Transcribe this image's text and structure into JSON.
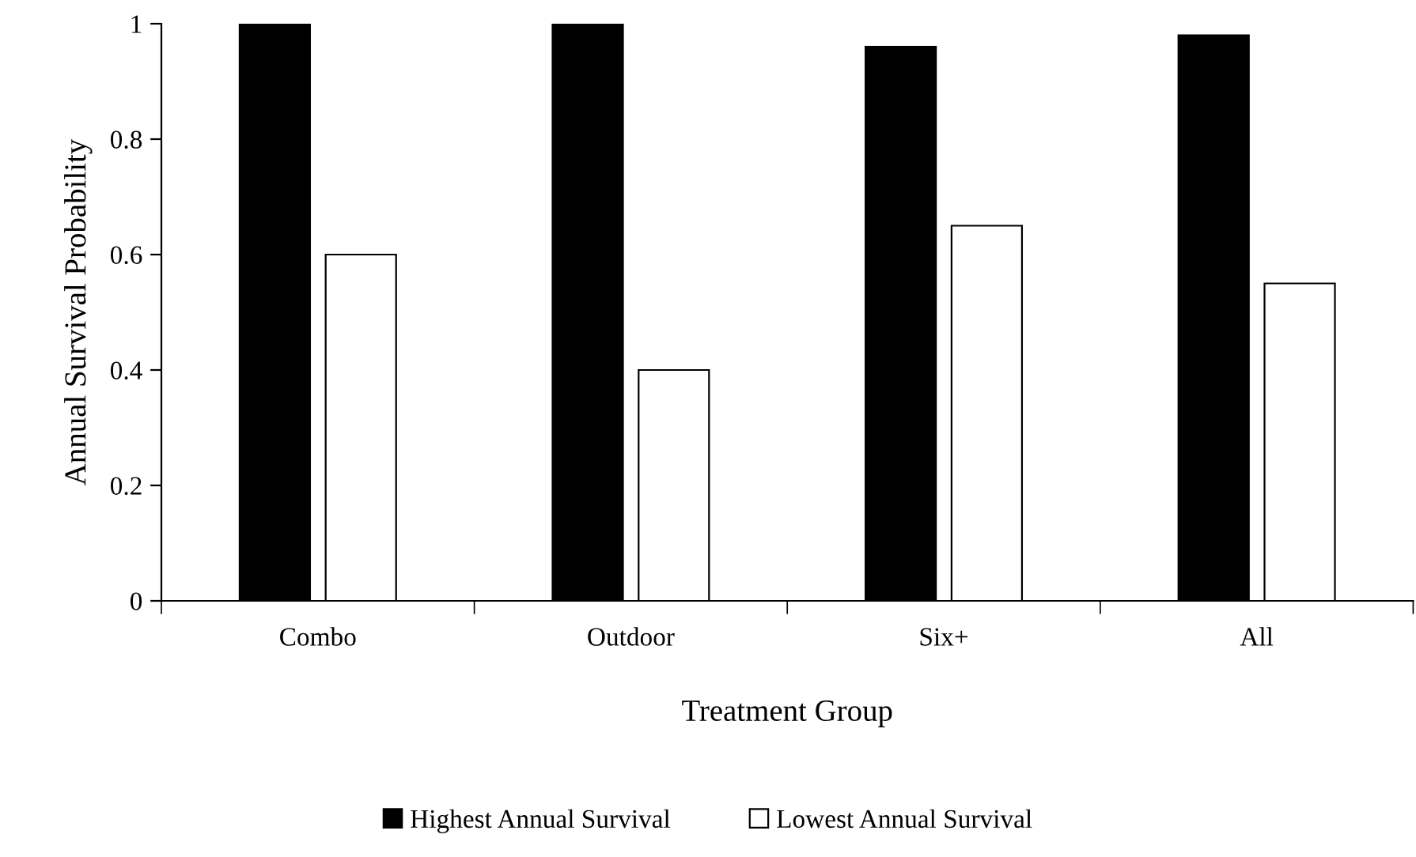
{
  "chart_data": {
    "type": "bar",
    "xlabel": "Treatment Group",
    "ylabel": "Annual Survival Probability",
    "categories": [
      "Combo",
      "Outdoor",
      "Six+",
      "All"
    ],
    "series": [
      {
        "name": "Highest Annual Survival",
        "color": "#000000",
        "values": [
          1,
          1,
          0.96,
          0.98
        ]
      },
      {
        "name": "Lowest Annual Survival",
        "color": "#ffffff",
        "values": [
          0.6,
          0.4,
          0.65,
          0.55
        ]
      }
    ],
    "ylim": [
      0,
      1
    ],
    "yticks": [
      0,
      0.2,
      0.4,
      0.6,
      0.8,
      1
    ],
    "grid": false,
    "legend": "bottom"
  }
}
